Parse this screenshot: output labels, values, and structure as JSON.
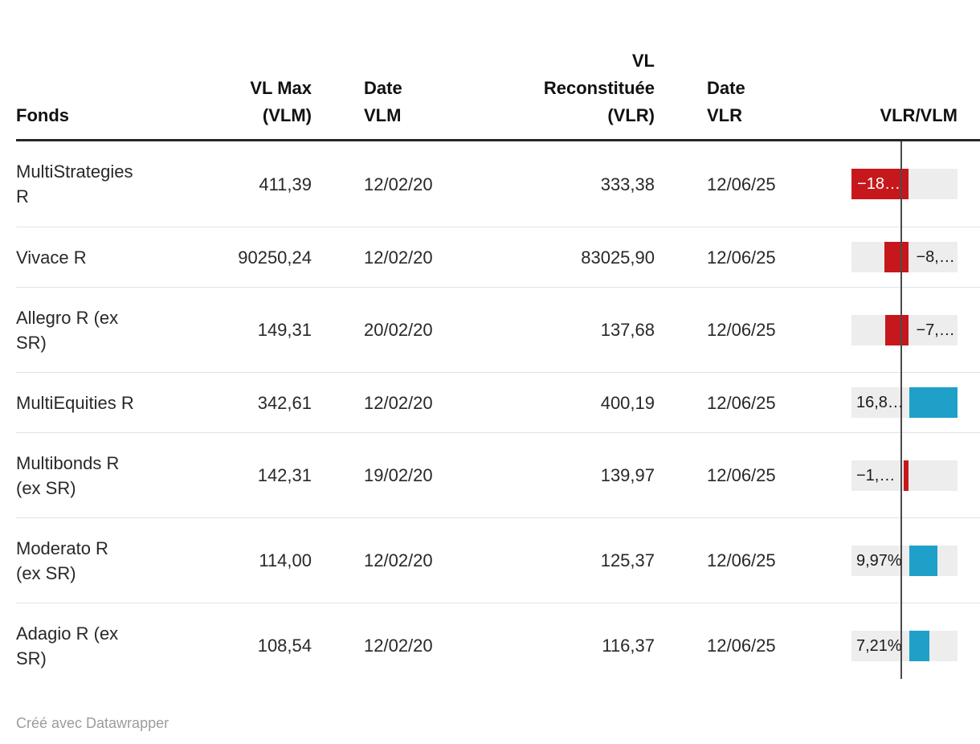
{
  "table": {
    "columns": [
      {
        "id": "fonds",
        "label": "Fonds"
      },
      {
        "id": "vl_max",
        "label": "VL Max\n(VLM)"
      },
      {
        "id": "date_vlm",
        "label": "Date\nVLM"
      },
      {
        "id": "vl_reconstituee",
        "label": "VL\nReconstituée\n(VLR)"
      },
      {
        "id": "date_vlr",
        "label": "Date\nVLR"
      },
      {
        "id": "vlr_vlm",
        "label": "VLR/VLM"
      }
    ],
    "rows": [
      {
        "fonds": "MultiStrategies\nR",
        "vl_max": "411,39",
        "date_vlm": "12/02/20",
        "vl_reconstituee": "333,38",
        "date_vlr": "12/06/25",
        "bar": {
          "label": "−18…",
          "pct": -18.96,
          "label_pos": "inside"
        }
      },
      {
        "fonds": "Vivace R",
        "vl_max": "90250,24",
        "date_vlm": "12/02/20",
        "vl_reconstituee": "83025,90",
        "date_vlr": "12/06/25",
        "bar": {
          "label": "−8,…",
          "pct": -8.01,
          "label_pos": "right"
        }
      },
      {
        "fonds": "Allegro R (ex\nSR)",
        "vl_max": "149,31",
        "date_vlm": "20/02/20",
        "vl_reconstituee": "137,68",
        "date_vlr": "12/06/25",
        "bar": {
          "label": "−7,…",
          "pct": -7.79,
          "label_pos": "right"
        }
      },
      {
        "fonds": "MultiEquities R",
        "vl_max": "342,61",
        "date_vlm": "12/02/20",
        "vl_reconstituee": "400,19",
        "date_vlr": "12/06/25",
        "bar": {
          "label": "16,8…",
          "pct": 16.81,
          "label_pos": "left"
        }
      },
      {
        "fonds": "Multibonds R\n(ex SR)",
        "vl_max": "142,31",
        "date_vlm": "19/02/20",
        "vl_reconstituee": "139,97",
        "date_vlr": "12/06/25",
        "bar": {
          "label": "−1,…",
          "pct": -1.64,
          "label_pos": "left"
        }
      },
      {
        "fonds": "Moderato R\n(ex SR)",
        "vl_max": "114,00",
        "date_vlm": "12/02/20",
        "vl_reconstituee": "125,37",
        "date_vlr": "12/06/25",
        "bar": {
          "label": "9,97%",
          "pct": 9.97,
          "label_pos": "left"
        }
      },
      {
        "fonds": "Adagio R (ex\nSR)",
        "vl_max": "108,54",
        "date_vlm": "12/02/20",
        "vl_reconstituee": "116,37",
        "date_vlr": "12/06/25",
        "bar": {
          "label": "7,21%",
          "pct": 7.21,
          "label_pos": "left"
        }
      }
    ]
  },
  "footer": {
    "credit": "Créé avec Datawrapper"
  },
  "colors": {
    "negative_bar": "#c6181c",
    "positive_bar": "#1ea0c8",
    "bar_track": "#ededed",
    "axis_line": "#4b4b4b",
    "header_rule": "#262626",
    "row_separator": "#e2e2e2",
    "footer_text": "#9c9c9c"
  },
  "chart_data": {
    "type": "table",
    "title": "",
    "columns": [
      "Fonds",
      "VL Max (VLM)",
      "Date VLM",
      "VL Reconstituée (VLR)",
      "Date VLR",
      "VLR/VLM"
    ],
    "rows": [
      [
        "MultiStrategies R",
        411.39,
        "12/02/20",
        333.38,
        "12/06/25",
        -18.96
      ],
      [
        "Vivace R",
        90250.24,
        "12/02/20",
        83025.9,
        "12/06/25",
        -8.01
      ],
      [
        "Allegro R (ex SR)",
        149.31,
        "20/02/20",
        137.68,
        "12/06/25",
        -7.79
      ],
      [
        "MultiEquities R",
        342.61,
        "12/02/20",
        400.19,
        "12/06/25",
        16.81
      ],
      [
        "Multibonds R (ex SR)",
        142.31,
        "19/02/20",
        139.97,
        "12/06/25",
        -1.64
      ],
      [
        "Moderato R (ex SR)",
        114.0,
        "12/02/20",
        125.37,
        "12/06/25",
        9.97
      ],
      [
        "Adagio R (ex SR)",
        108.54,
        "12/02/20",
        116.37,
        "12/06/25",
        7.21
      ]
    ],
    "bar_column": {
      "name": "VLR/VLM",
      "unit": "%",
      "range": [
        -18.96,
        16.81
      ],
      "negative_color": "#c6181c",
      "positive_color": "#1ea0c8"
    }
  }
}
